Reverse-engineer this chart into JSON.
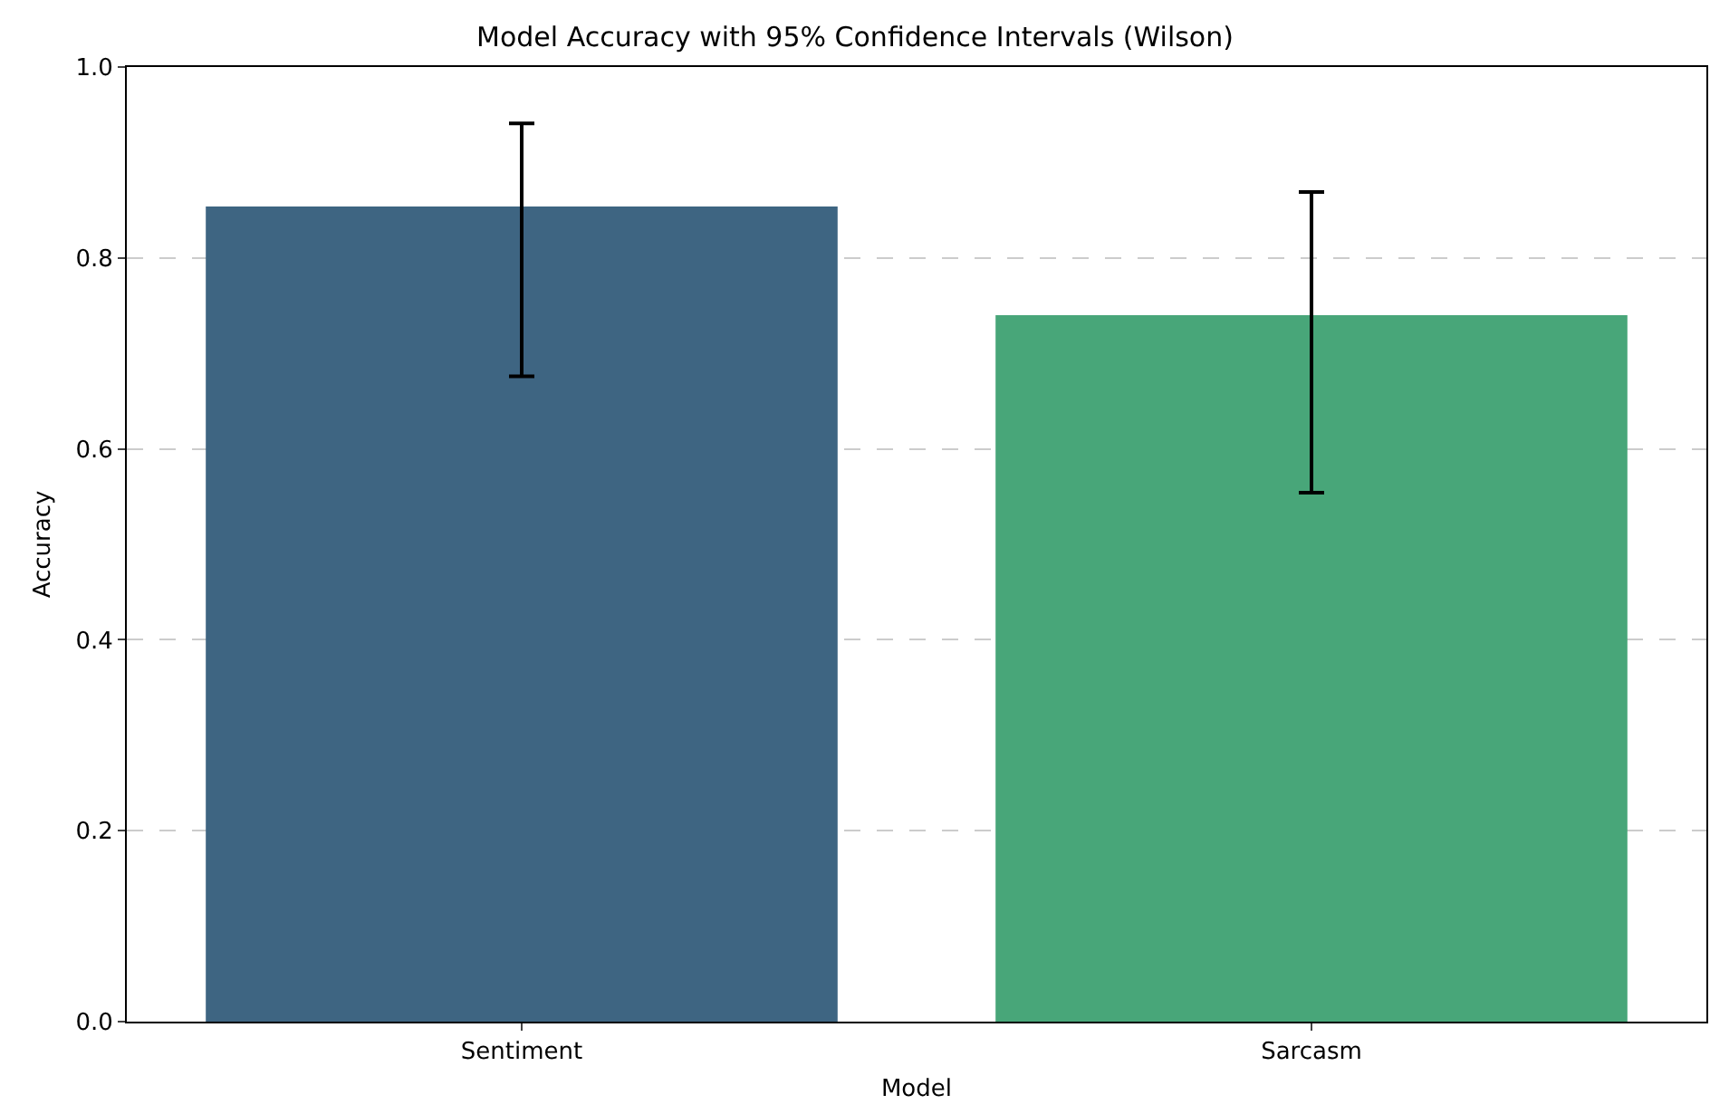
{
  "chart_data": {
    "type": "bar",
    "title": "Model Accuracy with 95% Confidence Intervals (Wilson)",
    "xlabel": "Model",
    "ylabel": "Accuracy",
    "categories": [
      "Sentiment",
      "Sarcasm"
    ],
    "values": [
      0.854,
      0.74
    ],
    "colors": [
      "#3e6582",
      "#48a679"
    ],
    "errors": [
      [
        0.676,
        0.941
      ],
      [
        0.554,
        0.869
      ]
    ],
    "ylim": [
      0,
      1
    ],
    "yticks": [
      {
        "value": 0,
        "label": "0.0"
      },
      0.2,
      0.4,
      0.6,
      0.8,
      {
        "value": 1,
        "label": "1.0"
      }
    ],
    "grid": "y"
  }
}
